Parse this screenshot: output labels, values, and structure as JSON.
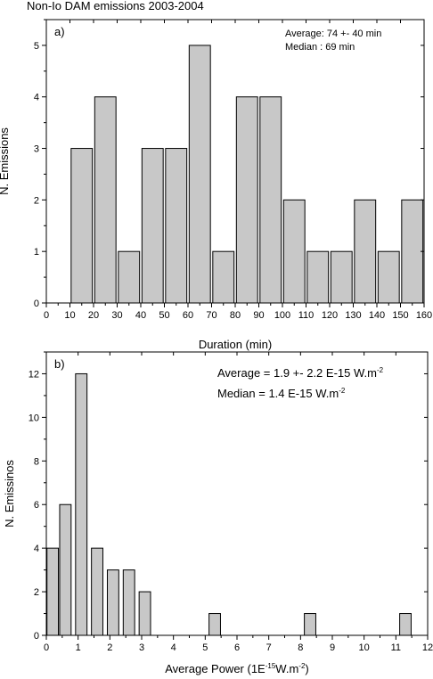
{
  "figure_title": "Non-Io DAM emissions 2003-2004",
  "chart_data": [
    {
      "type": "bar",
      "panel_label": "a)",
      "annotations": [
        "Average: 74 +- 40 min",
        "Median : 69 min"
      ],
      "xlabel": "Duration (min)",
      "ylabel": "N. Emissions",
      "xlim": [
        0,
        160
      ],
      "ylim": [
        0,
        5.5
      ],
      "xticks": [
        0,
        10,
        20,
        30,
        40,
        50,
        60,
        70,
        80,
        90,
        100,
        110,
        120,
        130,
        140,
        150,
        160
      ],
      "yticks": [
        0,
        1,
        2,
        3,
        4,
        5
      ],
      "bar_width": 9,
      "x": [
        15,
        25,
        35,
        45,
        55,
        65,
        75,
        85,
        95,
        105,
        115,
        125,
        135,
        145,
        155
      ],
      "values": [
        3,
        4,
        1,
        3,
        3,
        5,
        1,
        4,
        4,
        2,
        1,
        1,
        2,
        1,
        2
      ],
      "bar_color": "#c8c8c8"
    },
    {
      "type": "bar",
      "panel_label": "b)",
      "annotations": [
        {
          "text": "Average = 1.9 +- 2.2 E-15 W.m",
          "sup": "-2"
        },
        {
          "text": "Median = 1.4 E-15 W.m",
          "sup": "-2"
        }
      ],
      "xlabel": {
        "text": "Average Power (1E",
        "sup": "-15",
        "text2": "W.m",
        "sup2": "-2",
        "text3": ")"
      },
      "ylabel": "N. Emissinos",
      "xlim": [
        0,
        12
      ],
      "ylim": [
        0,
        13
      ],
      "xticks": [
        0,
        1,
        2,
        3,
        4,
        5,
        6,
        7,
        8,
        9,
        10,
        11,
        12
      ],
      "yticks": [
        0,
        2,
        4,
        6,
        8,
        10,
        12
      ],
      "bar_width": 0.36,
      "x": [
        0.2,
        0.6,
        1.1,
        1.6,
        2.1,
        2.6,
        3.1,
        5.3,
        8.3,
        11.3
      ],
      "values": [
        4,
        6,
        12,
        4,
        3,
        3,
        2,
        1,
        1,
        1
      ],
      "bar_color": "#c8c8c8"
    }
  ]
}
